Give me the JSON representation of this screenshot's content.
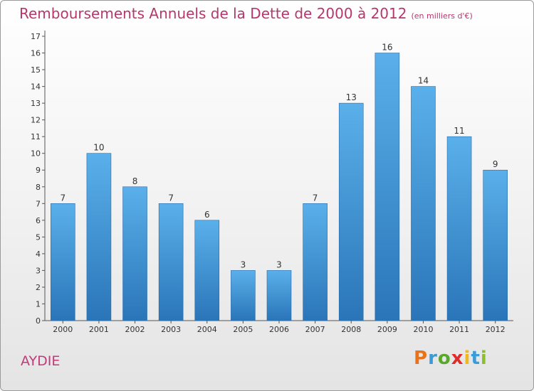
{
  "title": "Remboursements Annuels de la Dette de 2000 à 2012",
  "subtitle": "(en milliers d'€)",
  "commune": "AYDIE",
  "brand": {
    "letters": [
      "P",
      "r",
      "o",
      "x",
      "i",
      "t",
      "i"
    ],
    "colors": [
      "#e8731a",
      "#3b9bd6",
      "#59a82a",
      "#e12b2b",
      "#f0b81b",
      "#3b9bd6",
      "#8bbf2b"
    ]
  },
  "colors": {
    "bar": "#4a9fdc",
    "bar_dark": "#2a75b8",
    "title": "#b5376c"
  },
  "chart_data": {
    "type": "bar",
    "categories": [
      "2000",
      "2001",
      "2002",
      "2003",
      "2004",
      "2005",
      "2006",
      "2007",
      "2008",
      "2009",
      "2010",
      "2011",
      "2012"
    ],
    "values": [
      7,
      10,
      8,
      7,
      6,
      3,
      3,
      7,
      13,
      16,
      14,
      11,
      9
    ],
    "data_labels": [
      "7",
      "10",
      "8",
      "7",
      "6",
      "3",
      "3",
      "7",
      "13",
      "16",
      "14",
      "11",
      "9"
    ],
    "y_ticks": [
      "0",
      "1",
      "2",
      "3",
      "4",
      "5",
      "6",
      "7",
      "8",
      "9",
      "10",
      "11",
      "12",
      "13",
      "14",
      "15",
      "16",
      "17"
    ],
    "ylim": [
      0,
      17
    ],
    "grid": false,
    "xlabel": "",
    "ylabel": ""
  }
}
